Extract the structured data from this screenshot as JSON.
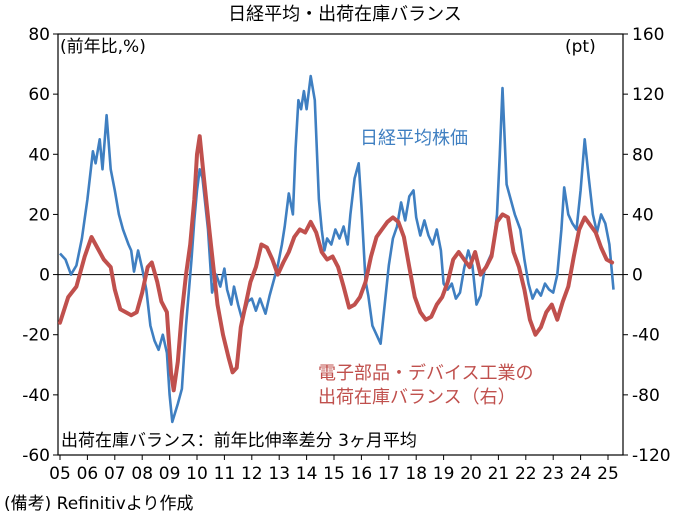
{
  "chart_data": {
    "type": "line",
    "title": "日経平均・出荷在庫バランス",
    "ylabel_left": "(前年比,%)",
    "ylabel_right": "(pt)",
    "note": "出荷在庫バランス：前年比伸率差分 3ヶ月平均",
    "source": "(備考) Refinitivより作成",
    "x_ticks": [
      "05",
      "06",
      "07",
      "08",
      "09",
      "10",
      "11",
      "12",
      "13",
      "14",
      "15",
      "16",
      "17",
      "18",
      "19",
      "20",
      "21",
      "22",
      "23",
      "24",
      "25"
    ],
    "x_range": [
      2005.0,
      2025.5
    ],
    "y_left": {
      "range": [
        -60,
        80
      ],
      "ticks": [
        -60,
        -40,
        -20,
        0,
        20,
        40,
        60,
        80
      ]
    },
    "y_right": {
      "range": [
        -120,
        160
      ],
      "ticks": [
        -120,
        -80,
        -40,
        0,
        40,
        80,
        120,
        160
      ]
    },
    "series": [
      {
        "name": "日経平均株価",
        "axis": "left",
        "color": "#3f7fc1",
        "points": [
          [
            2005.0,
            7
          ],
          [
            2005.2,
            5
          ],
          [
            2005.4,
            0
          ],
          [
            2005.6,
            3
          ],
          [
            2005.8,
            12
          ],
          [
            2006.0,
            25
          ],
          [
            2006.2,
            41
          ],
          [
            2006.3,
            37
          ],
          [
            2006.45,
            45
          ],
          [
            2006.55,
            35
          ],
          [
            2006.7,
            53
          ],
          [
            2006.85,
            35
          ],
          [
            2007.0,
            28
          ],
          [
            2007.15,
            20
          ],
          [
            2007.3,
            15
          ],
          [
            2007.5,
            10
          ],
          [
            2007.6,
            8
          ],
          [
            2007.7,
            1
          ],
          [
            2007.85,
            8
          ],
          [
            2008.0,
            2
          ],
          [
            2008.15,
            -5
          ],
          [
            2008.3,
            -17
          ],
          [
            2008.45,
            -22
          ],
          [
            2008.6,
            -25
          ],
          [
            2008.75,
            -20
          ],
          [
            2008.9,
            -26
          ],
          [
            2009.0,
            -40
          ],
          [
            2009.1,
            -49
          ],
          [
            2009.3,
            -43
          ],
          [
            2009.45,
            -38
          ],
          [
            2009.6,
            -17
          ],
          [
            2009.8,
            5
          ],
          [
            2009.9,
            18
          ],
          [
            2010.0,
            28
          ],
          [
            2010.1,
            35
          ],
          [
            2010.2,
            32
          ],
          [
            2010.4,
            15
          ],
          [
            2010.55,
            -6
          ],
          [
            2010.7,
            0
          ],
          [
            2010.85,
            -4
          ],
          [
            2011.0,
            2
          ],
          [
            2011.1,
            -5
          ],
          [
            2011.25,
            -10
          ],
          [
            2011.35,
            -4
          ],
          [
            2011.5,
            -10
          ],
          [
            2011.65,
            -15
          ],
          [
            2011.85,
            -9
          ],
          [
            2012.0,
            -8
          ],
          [
            2012.15,
            -12
          ],
          [
            2012.3,
            -8
          ],
          [
            2012.5,
            -13
          ],
          [
            2012.65,
            -7
          ],
          [
            2012.8,
            -2
          ],
          [
            2012.95,
            3
          ],
          [
            2013.1,
            10
          ],
          [
            2013.2,
            16
          ],
          [
            2013.35,
            27
          ],
          [
            2013.5,
            20
          ],
          [
            2013.6,
            42
          ],
          [
            2013.7,
            58
          ],
          [
            2013.8,
            55
          ],
          [
            2013.9,
            61
          ],
          [
            2014.0,
            55
          ],
          [
            2014.15,
            66
          ],
          [
            2014.3,
            58
          ],
          [
            2014.45,
            25
          ],
          [
            2014.55,
            15
          ],
          [
            2014.65,
            8
          ],
          [
            2014.75,
            12
          ],
          [
            2014.9,
            10
          ],
          [
            2015.05,
            15
          ],
          [
            2015.2,
            12
          ],
          [
            2015.35,
            16
          ],
          [
            2015.5,
            10
          ],
          [
            2015.6,
            20
          ],
          [
            2015.75,
            32
          ],
          [
            2015.9,
            37
          ],
          [
            2016.0,
            23
          ],
          [
            2016.15,
            -2
          ],
          [
            2016.25,
            -7
          ],
          [
            2016.4,
            -17
          ],
          [
            2016.55,
            -20
          ],
          [
            2016.7,
            -23
          ],
          [
            2016.85,
            -10
          ],
          [
            2017.0,
            3
          ],
          [
            2017.15,
            12
          ],
          [
            2017.3,
            16
          ],
          [
            2017.45,
            24
          ],
          [
            2017.6,
            18
          ],
          [
            2017.75,
            26
          ],
          [
            2017.9,
            28
          ],
          [
            2018.0,
            19
          ],
          [
            2018.15,
            13
          ],
          [
            2018.3,
            18
          ],
          [
            2018.45,
            13
          ],
          [
            2018.6,
            10
          ],
          [
            2018.75,
            15
          ],
          [
            2018.9,
            8
          ],
          [
            2019.0,
            -3
          ],
          [
            2019.15,
            -5
          ],
          [
            2019.3,
            -3
          ],
          [
            2019.45,
            -8
          ],
          [
            2019.6,
            -6
          ],
          [
            2019.75,
            2
          ],
          [
            2019.9,
            8
          ],
          [
            2020.05,
            3
          ],
          [
            2020.2,
            -10
          ],
          [
            2020.35,
            -7
          ],
          [
            2020.5,
            2
          ],
          [
            2020.65,
            5
          ],
          [
            2020.8,
            8
          ],
          [
            2020.95,
            20
          ],
          [
            2021.05,
            40
          ],
          [
            2021.15,
            62
          ],
          [
            2021.3,
            30
          ],
          [
            2021.45,
            25
          ],
          [
            2021.6,
            20
          ],
          [
            2021.8,
            15
          ],
          [
            2021.95,
            5
          ],
          [
            2022.1,
            -3
          ],
          [
            2022.25,
            -8
          ],
          [
            2022.4,
            -5
          ],
          [
            2022.55,
            -7
          ],
          [
            2022.7,
            -3
          ],
          [
            2022.85,
            -5
          ],
          [
            2023.0,
            -6
          ],
          [
            2023.15,
            0
          ],
          [
            2023.3,
            15
          ],
          [
            2023.4,
            29
          ],
          [
            2023.55,
            20
          ],
          [
            2023.7,
            17
          ],
          [
            2023.85,
            15
          ],
          [
            2024.0,
            28
          ],
          [
            2024.15,
            45
          ],
          [
            2024.3,
            32
          ],
          [
            2024.45,
            20
          ],
          [
            2024.6,
            14
          ],
          [
            2024.75,
            20
          ],
          [
            2024.9,
            17
          ],
          [
            2025.05,
            10
          ],
          [
            2025.2,
            -5
          ]
        ]
      },
      {
        "name": "電子部品・デバイス工業の出荷在庫バランス（右）",
        "axis": "right",
        "color": "#c0504d",
        "points": [
          [
            2005.0,
            -32
          ],
          [
            2005.3,
            -15
          ],
          [
            2005.6,
            -8
          ],
          [
            2005.9,
            12
          ],
          [
            2006.15,
            25
          ],
          [
            2006.3,
            20
          ],
          [
            2006.6,
            10
          ],
          [
            2006.85,
            5
          ],
          [
            2007.0,
            -10
          ],
          [
            2007.2,
            -23
          ],
          [
            2007.4,
            -25
          ],
          [
            2007.6,
            -27
          ],
          [
            2007.8,
            -25
          ],
          [
            2008.0,
            -12
          ],
          [
            2008.2,
            5
          ],
          [
            2008.35,
            8
          ],
          [
            2008.55,
            -5
          ],
          [
            2008.7,
            -18
          ],
          [
            2008.9,
            -25
          ],
          [
            2009.05,
            -65
          ],
          [
            2009.15,
            -77
          ],
          [
            2009.3,
            -58
          ],
          [
            2009.45,
            -25
          ],
          [
            2009.6,
            0
          ],
          [
            2009.75,
            20
          ],
          [
            2009.9,
            50
          ],
          [
            2010.0,
            80
          ],
          [
            2010.1,
            92
          ],
          [
            2010.25,
            65
          ],
          [
            2010.45,
            30
          ],
          [
            2010.6,
            5
          ],
          [
            2010.75,
            -20
          ],
          [
            2010.95,
            -40
          ],
          [
            2011.15,
            -55
          ],
          [
            2011.3,
            -65
          ],
          [
            2011.45,
            -62
          ],
          [
            2011.6,
            -35
          ],
          [
            2011.8,
            -18
          ],
          [
            2011.95,
            -5
          ],
          [
            2012.15,
            5
          ],
          [
            2012.35,
            20
          ],
          [
            2012.55,
            18
          ],
          [
            2012.75,
            10
          ],
          [
            2012.95,
            0
          ],
          [
            2013.15,
            8
          ],
          [
            2013.35,
            15
          ],
          [
            2013.55,
            25
          ],
          [
            2013.75,
            30
          ],
          [
            2013.95,
            28
          ],
          [
            2014.15,
            35
          ],
          [
            2014.35,
            28
          ],
          [
            2014.55,
            15
          ],
          [
            2014.75,
            10
          ],
          [
            2014.95,
            12
          ],
          [
            2015.15,
            5
          ],
          [
            2015.35,
            -8
          ],
          [
            2015.55,
            -22
          ],
          [
            2015.75,
            -20
          ],
          [
            2015.95,
            -15
          ],
          [
            2016.15,
            -5
          ],
          [
            2016.35,
            12
          ],
          [
            2016.55,
            25
          ],
          [
            2016.75,
            30
          ],
          [
            2016.95,
            35
          ],
          [
            2017.15,
            38
          ],
          [
            2017.35,
            35
          ],
          [
            2017.55,
            25
          ],
          [
            2017.75,
            5
          ],
          [
            2017.95,
            -15
          ],
          [
            2018.15,
            -25
          ],
          [
            2018.35,
            -30
          ],
          [
            2018.55,
            -28
          ],
          [
            2018.75,
            -20
          ],
          [
            2018.95,
            -15
          ],
          [
            2019.15,
            -5
          ],
          [
            2019.35,
            10
          ],
          [
            2019.55,
            15
          ],
          [
            2019.75,
            10
          ],
          [
            2019.95,
            5
          ],
          [
            2020.15,
            15
          ],
          [
            2020.35,
            0
          ],
          [
            2020.55,
            5
          ],
          [
            2020.75,
            12
          ],
          [
            2020.95,
            35
          ],
          [
            2021.15,
            40
          ],
          [
            2021.35,
            38
          ],
          [
            2021.55,
            15
          ],
          [
            2021.75,
            5
          ],
          [
            2021.95,
            -10
          ],
          [
            2022.15,
            -30
          ],
          [
            2022.35,
            -40
          ],
          [
            2022.55,
            -35
          ],
          [
            2022.75,
            -25
          ],
          [
            2022.95,
            -20
          ],
          [
            2023.15,
            -30
          ],
          [
            2023.35,
            -18
          ],
          [
            2023.55,
            -8
          ],
          [
            2023.75,
            12
          ],
          [
            2023.95,
            30
          ],
          [
            2024.15,
            38
          ],
          [
            2024.35,
            33
          ],
          [
            2024.55,
            28
          ],
          [
            2024.75,
            18
          ],
          [
            2024.95,
            10
          ],
          [
            2025.15,
            8
          ]
        ]
      }
    ],
    "series_labels": {
      "nikkei": "日経平均株価",
      "elec_line1": "電子部品・デバイス工業の",
      "elec_line2": "出荷在庫バランス（右）"
    }
  }
}
